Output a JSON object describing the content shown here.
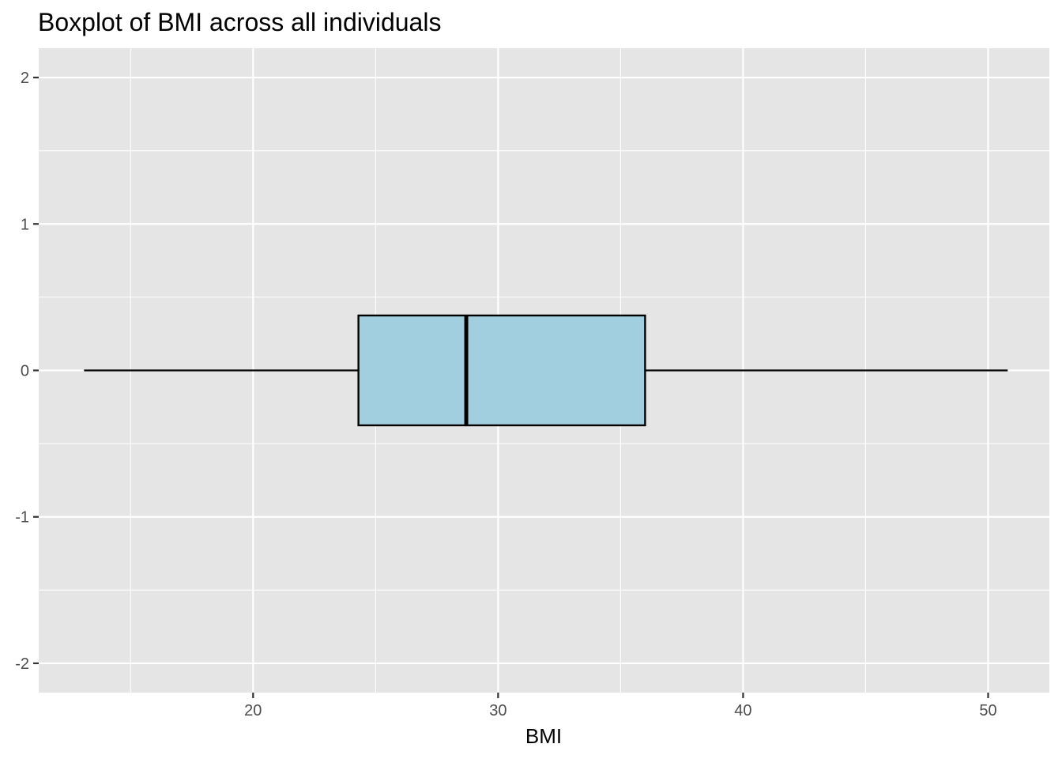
{
  "chart_data": {
    "type": "boxplot",
    "title": "Boxplot of BMI across all individuals",
    "xlabel": "BMI",
    "ylabel": "",
    "orientation": "horizontal",
    "box": {
      "y": 0,
      "whisker_low": 13.1,
      "q1": 24.3,
      "median": 28.7,
      "q3": 36.0,
      "whisker_high": 50.8,
      "box_halfwidth": 0.375
    },
    "xlim": [
      11.25,
      52.5
    ],
    "ylim": [
      -2.2,
      2.2
    ],
    "x_ticks": [
      20,
      30,
      40,
      50
    ],
    "x_tick_labels": [
      "20",
      "30",
      "40",
      "50"
    ],
    "y_ticks": [
      -2,
      -1,
      0,
      1,
      2
    ],
    "y_tick_labels": [
      "-2",
      "-1",
      "0",
      "1",
      "2"
    ],
    "grid": true,
    "legend": "none",
    "colors": {
      "panel": "#e5e5e5",
      "grid": "#ffffff",
      "box_fill": "#a1cfdf",
      "outline": "#000000",
      "tick_text": "#4d4d4d"
    }
  }
}
